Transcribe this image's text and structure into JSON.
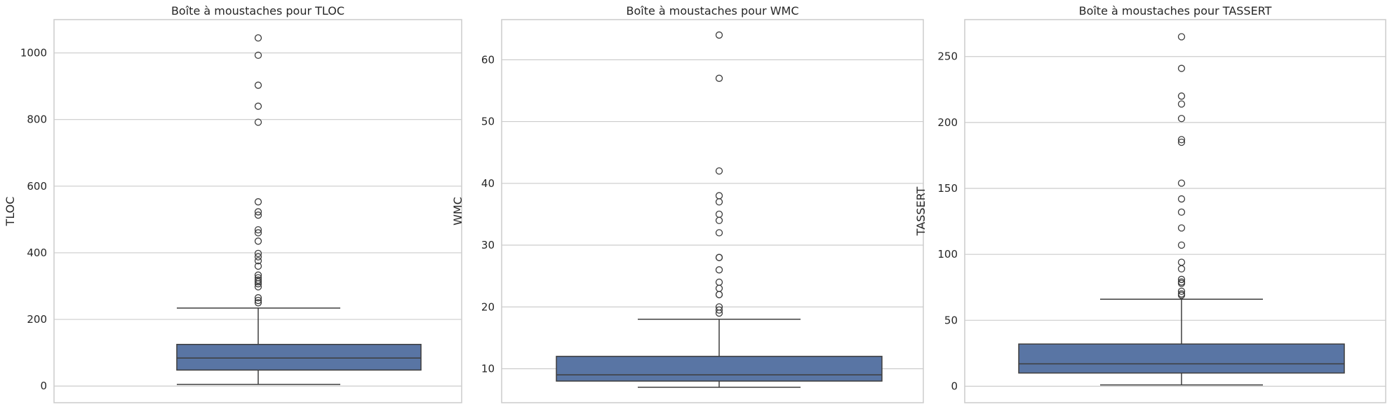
{
  "colors": {
    "box_fill": "#5975a4",
    "line": "#3d3d3d",
    "grid": "#cccccc",
    "text": "#262626"
  },
  "chart_data": [
    {
      "type": "box",
      "title": "Boîte à moustaches pour TLOC",
      "xlabel": "",
      "ylabel": "TLOC",
      "ylim": [
        -50,
        1100
      ],
      "yticks": [
        0,
        200,
        400,
        600,
        800,
        1000
      ],
      "grid": true,
      "box": {
        "whisker_low": 5,
        "q1": 48,
        "median": 84,
        "q3": 125,
        "whisker_high": 234
      },
      "outliers": [
        1045,
        993,
        903,
        840,
        792,
        553,
        523,
        513,
        469,
        460,
        435,
        398,
        388,
        376,
        360,
        333,
        325,
        318,
        313,
        307,
        298,
        265,
        257,
        250
      ]
    },
    {
      "type": "box",
      "title": "Boîte à moustaches pour WMC",
      "xlabel": "",
      "ylabel": "WMC",
      "ylim": [
        4.5,
        66.5
      ],
      "yticks": [
        10,
        20,
        30,
        40,
        50,
        60
      ],
      "grid": true,
      "box": {
        "whisker_low": 7,
        "q1": 8,
        "median": 9,
        "q3": 12,
        "whisker_high": 18
      },
      "outliers": [
        64,
        57,
        42,
        38,
        37,
        35,
        34,
        32,
        28,
        28,
        26,
        24,
        23,
        22,
        22,
        20,
        19.5,
        19
      ]
    },
    {
      "type": "box",
      "title": "Boîte à moustaches pour TASSERT",
      "xlabel": "",
      "ylabel": "TASSERT",
      "ylim": [
        -12.5,
        278
      ],
      "yticks": [
        0,
        50,
        100,
        150,
        200,
        250
      ],
      "grid": true,
      "box": {
        "whisker_low": 1,
        "q1": 10,
        "median": 17,
        "q3": 32,
        "whisker_high": 66
      },
      "outliers": [
        265,
        241,
        220,
        214,
        203,
        187,
        185,
        154,
        142,
        132,
        120,
        107,
        94,
        89,
        81,
        79,
        78,
        72,
        70,
        69
      ]
    }
  ]
}
